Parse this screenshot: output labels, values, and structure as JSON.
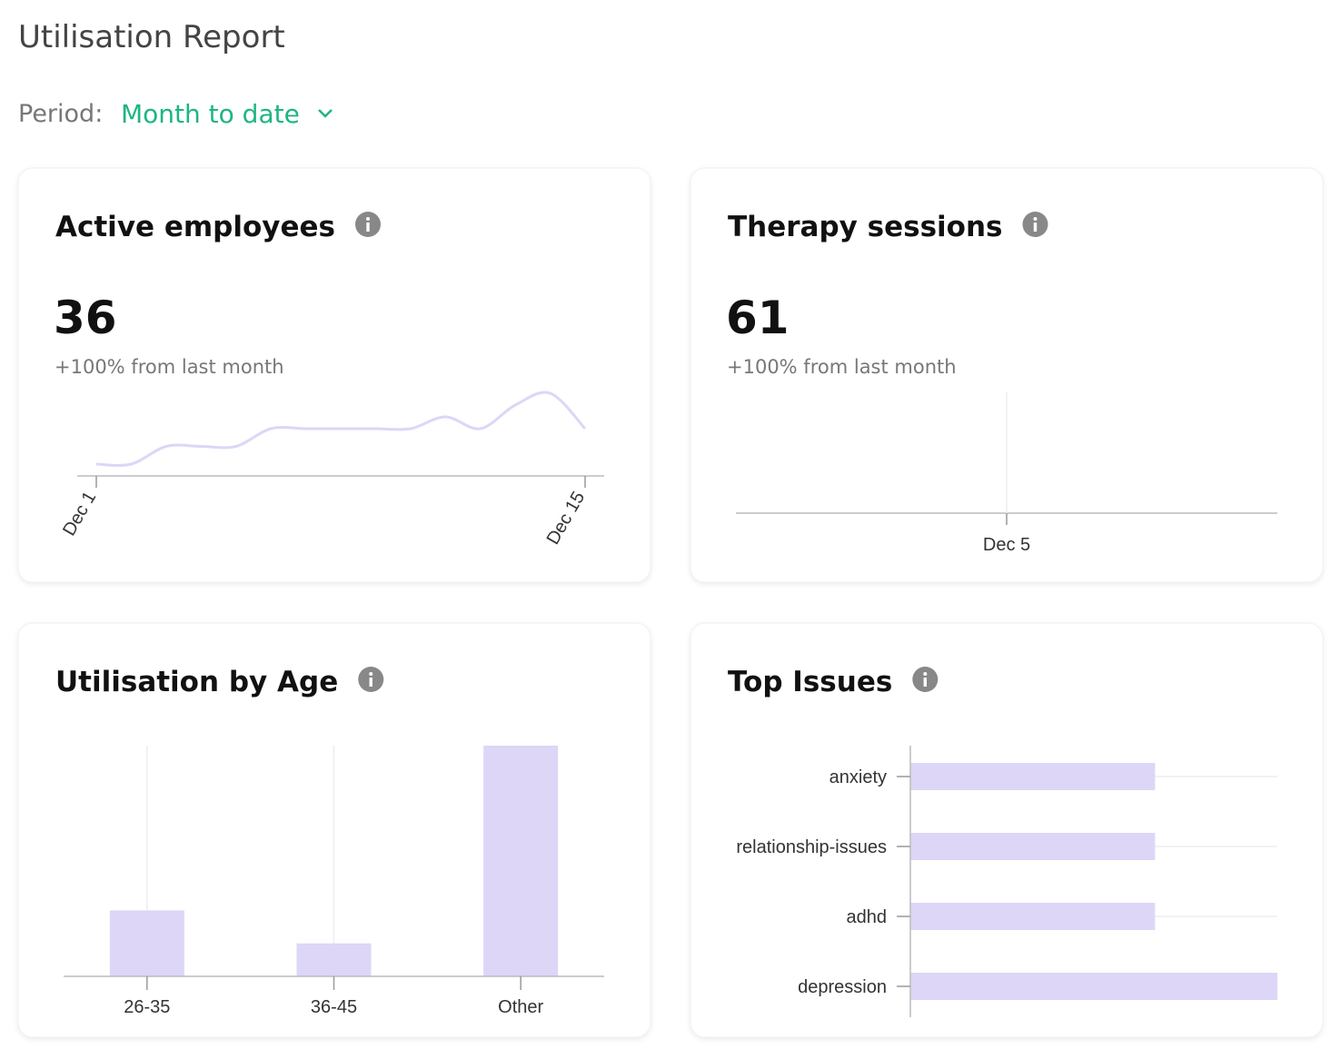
{
  "title": "Utilisation Report",
  "period": {
    "label": "Period:",
    "value": "Month to date"
  },
  "cards": [
    {
      "title": "Active employees",
      "value": 36,
      "change": "+100% from last month",
      "chart": {
        "type": "line",
        "categories": [
          "Dec 1",
          null,
          null,
          null,
          null,
          null,
          null,
          null,
          null,
          null,
          null,
          null,
          null,
          null,
          "Dec 15"
        ],
        "values": [
          1,
          1,
          2.5,
          2.5,
          2.5,
          4,
          4,
          4,
          4,
          4,
          5,
          4,
          6,
          7,
          4
        ],
        "ylim": [
          0,
          7
        ],
        "color": "#ddd6f7"
      }
    },
    {
      "title": "Therapy sessions",
      "value": 61,
      "change": "+100% from last month",
      "chart": {
        "type": "line",
        "categories": [
          "Dec 5"
        ],
        "values": [
          null
        ],
        "ylim": [
          0,
          7
        ],
        "color": "#ddd6f7"
      }
    },
    {
      "title": "Utilisation by Age",
      "chart": {
        "type": "bar",
        "categories": [
          "26-35",
          "36-45",
          "Other"
        ],
        "values": [
          2,
          1,
          7
        ],
        "ylim": [
          0,
          7
        ],
        "color": "#ddd6f7"
      }
    },
    {
      "title": "Top Issues",
      "chart": {
        "type": "hbar",
        "categories": [
          "anxiety",
          "relationship-issues",
          "adhd",
          "depression"
        ],
        "values": [
          2,
          2,
          2,
          3
        ],
        "xlim": [
          0,
          3
        ],
        "color": "#ddd6f7"
      }
    }
  ]
}
